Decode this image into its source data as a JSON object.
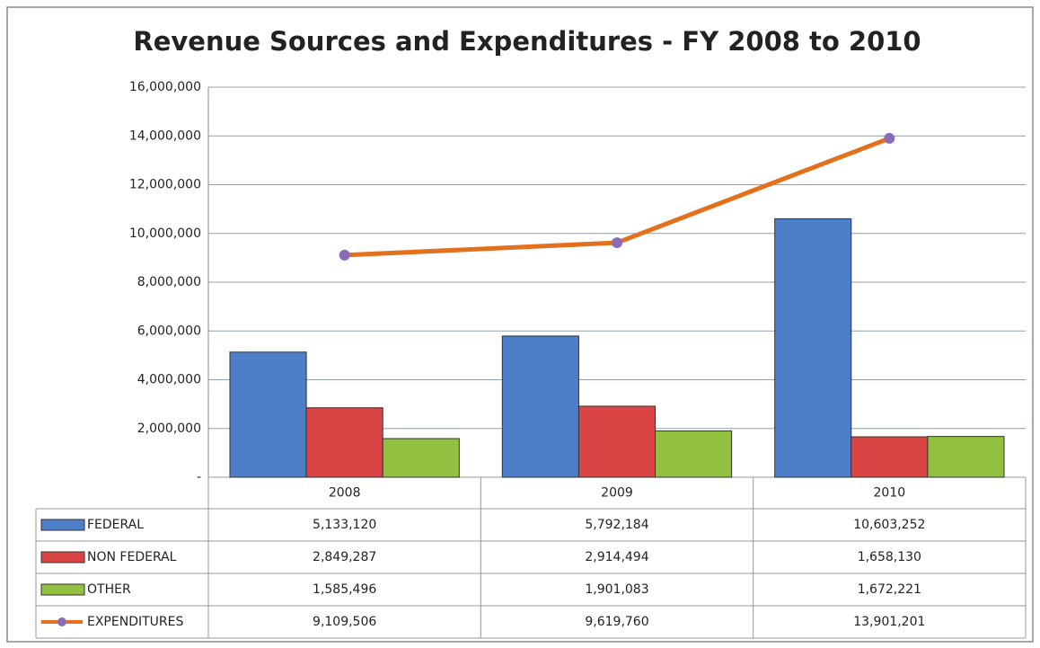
{
  "chart_data": {
    "type": "bar",
    "title": "Revenue Sources and Expenditures - FY 2008 to 2010",
    "categories": [
      "2008",
      "2009",
      "2010"
    ],
    "series": [
      {
        "name": "FEDERAL",
        "type": "bar",
        "color": "#4f7ec8",
        "values": [
          5133120,
          5792184,
          10603252
        ],
        "value_labels": [
          "5,133,120",
          "5,792,184",
          "10,603,252"
        ]
      },
      {
        "name": "NON FEDERAL",
        "type": "bar",
        "color": "#d94545",
        "values": [
          2849287,
          2914494,
          1658130
        ],
        "value_labels": [
          "2,849,287",
          "2,914,494",
          "1,658,130"
        ]
      },
      {
        "name": "OTHER",
        "type": "bar",
        "color": "#92c142",
        "values": [
          1585496,
          1901083,
          1672221
        ],
        "value_labels": [
          "1,585,496",
          "1,901,083",
          "1,672,221"
        ]
      },
      {
        "name": "EXPENDITURES",
        "type": "line",
        "color": "#e4701e",
        "marker_color": "#8a6bb8",
        "values": [
          9109506,
          9619760,
          13901201
        ],
        "value_labels": [
          "9,109,506",
          "9,619,760",
          "13,901,201"
        ]
      }
    ],
    "ylim": [
      0,
      16000000
    ],
    "yticks": [
      {
        "value": 0,
        "label": "-"
      },
      {
        "value": 2000000,
        "label": "2,000,000"
      },
      {
        "value": 4000000,
        "label": "4,000,000"
      },
      {
        "value": 6000000,
        "label": "6,000,000"
      },
      {
        "value": 8000000,
        "label": "8,000,000"
      },
      {
        "value": 10000000,
        "label": "10,000,000"
      },
      {
        "value": 12000000,
        "label": "12,000,000"
      },
      {
        "value": 14000000,
        "label": "14,000,000"
      },
      {
        "value": 16000000,
        "label": "16,000,000"
      }
    ],
    "grid": true
  }
}
